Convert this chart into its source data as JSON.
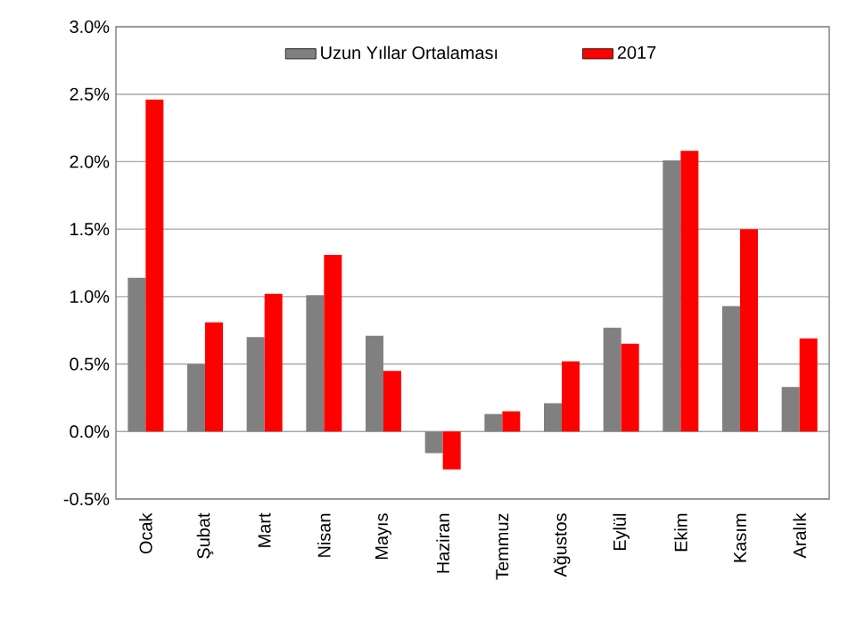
{
  "chart_data": {
    "type": "bar",
    "categories": [
      "Ocak",
      "Şubat",
      "Mart",
      "Nisan",
      "Mayıs",
      "Haziran",
      "Temmuz",
      "Ağustos",
      "Eylül",
      "Ekim",
      "Kasım",
      "Aralık"
    ],
    "series": [
      {
        "name": "Uzun Yıllar Ortalaması",
        "color": "#808080",
        "values": [
          1.14,
          0.5,
          0.7,
          1.01,
          0.71,
          -0.16,
          0.13,
          0.21,
          0.77,
          2.01,
          0.93,
          0.33
        ]
      },
      {
        "name": "2017",
        "color": "#ff0000",
        "values": [
          2.46,
          0.81,
          1.02,
          1.31,
          0.45,
          -0.28,
          0.15,
          0.52,
          0.65,
          2.08,
          1.5,
          0.69
        ]
      }
    ],
    "ylim": [
      -0.5,
      3.0
    ],
    "yticks": [
      {
        "value": -0.5,
        "label": "-0.5%"
      },
      {
        "value": 0.0,
        "label": "0.0%"
      },
      {
        "value": 0.5,
        "label": "0.5%"
      },
      {
        "value": 1.0,
        "label": "1.0%"
      },
      {
        "value": 1.5,
        "label": "1.5%"
      },
      {
        "value": 2.0,
        "label": "2.0%"
      },
      {
        "value": 2.5,
        "label": "2.5%"
      },
      {
        "value": 3.0,
        "label": "3.0%"
      }
    ],
    "grid": "y",
    "legend": "top"
  }
}
